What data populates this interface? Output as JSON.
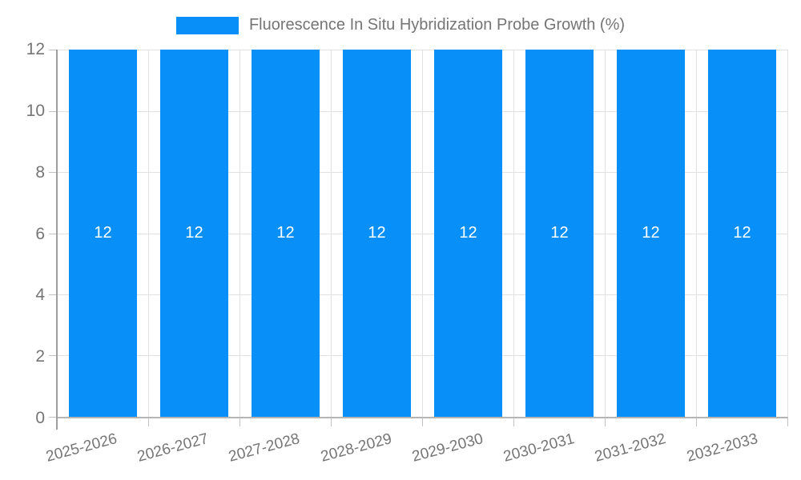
{
  "legend": {
    "label": "Fluorescence In Situ Hybridization Probe Growth (%)"
  },
  "chart_data": {
    "type": "bar",
    "title": "Fluorescence In Situ Hybridization Probe Growth (%)",
    "categories": [
      "2025-2026",
      "2026-2027",
      "2027-2028",
      "2028-2029",
      "2029-2030",
      "2030-2031",
      "2031-2032",
      "2032-2033"
    ],
    "values": [
      12,
      12,
      12,
      12,
      12,
      12,
      12,
      12
    ],
    "xlabel": "",
    "ylabel": "",
    "ylim": [
      0,
      12
    ],
    "yticks": [
      0,
      2,
      4,
      6,
      8,
      10,
      12
    ],
    "grid": true,
    "legend_position": "top",
    "bar_label_position": "center",
    "colors": {
      "bar": "#0890f8",
      "bar_label": "#ffffff",
      "axis_text": "#757575",
      "gridline": "#e2e2e2",
      "axis_line": "#9e9e9e"
    }
  }
}
